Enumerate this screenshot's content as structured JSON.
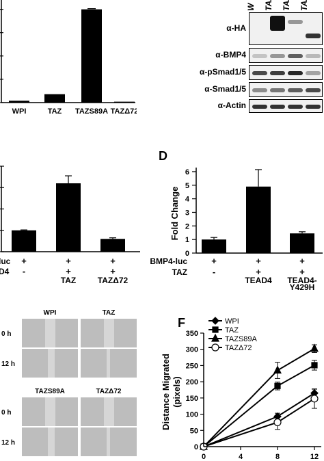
{
  "panel_letters": {
    "d": "D",
    "f": "F"
  },
  "chart_data": [
    {
      "id": "panel-a-bars",
      "type": "bar",
      "categories": [
        "WPI",
        "TAZ",
        "TAZS89A",
        "TAZΔ72"
      ],
      "values": [
        2,
        9,
        100,
        1
      ],
      "ylim": [
        0,
        110
      ],
      "xlabel": "",
      "ylabel": "",
      "title": ""
    },
    {
      "id": "panel-c-bars",
      "type": "bar",
      "values": [
        1.0,
        3.2,
        0.6
      ],
      "errors": [
        0.02,
        0.35,
        0.05
      ],
      "ylim": [
        0,
        4
      ],
      "row1_label": "luc",
      "row1": [
        "+",
        "+",
        "+"
      ],
      "row2_label": "D4",
      "row2": [
        "-",
        "+",
        "+"
      ],
      "row3": [
        "",
        "TAZ",
        "TAZΔ72"
      ]
    },
    {
      "id": "panel-d-bars",
      "type": "bar",
      "ylabel": "Fold Change",
      "values": [
        1.0,
        4.9,
        1.45
      ],
      "errors": [
        0.15,
        1.25,
        0.12
      ],
      "yticks": [
        "0",
        "1",
        "2",
        "3",
        "4",
        "5",
        "6"
      ],
      "ylim": [
        0,
        6.3
      ],
      "row1_label": "BMP4-luc",
      "row1": [
        "+",
        "+",
        "+"
      ],
      "row2_label": "TAZ",
      "row2": [
        "-",
        "+",
        "+"
      ],
      "row3": [
        "",
        "TEAD4",
        "TEAD4-"
      ],
      "row4": [
        "",
        "",
        "Y429H"
      ]
    },
    {
      "id": "panel-f-lines",
      "type": "line",
      "ylabel": "Distance Migrated",
      "ylabel2": "(pixels)",
      "x_ticks": [
        "0",
        "4",
        "8",
        "12"
      ],
      "x_range": [
        0,
        12
      ],
      "yticks": [
        "0",
        "50",
        "100",
        "150",
        "200",
        "250",
        "300",
        "350"
      ],
      "ylim": [
        0,
        350
      ],
      "series": [
        {
          "name": "WPI",
          "marker": "diamond",
          "x": [
            0,
            8,
            12
          ],
          "y": [
            0,
            93,
            165
          ],
          "err": [
            0,
            10,
            12
          ]
        },
        {
          "name": "TAZ",
          "marker": "square",
          "x": [
            0,
            8,
            12
          ],
          "y": [
            0,
            187,
            251
          ],
          "err": [
            0,
            12,
            15
          ]
        },
        {
          "name": "TAZS89A",
          "marker": "triangle",
          "x": [
            0,
            8,
            12
          ],
          "y": [
            0,
            235,
            302
          ],
          "err": [
            0,
            25,
            12
          ]
        },
        {
          "name": "TAZΔ72",
          "marker": "circle",
          "x": [
            0,
            8,
            12
          ],
          "y": [
            0,
            75,
            148
          ],
          "err": [
            0,
            22,
            30
          ]
        }
      ]
    }
  ],
  "blot": {
    "header_lanes": [
      "W",
      "TAZ",
      "TAZ",
      "TAZ"
    ],
    "rows": [
      {
        "label": "α-HA",
        "bands": [
          0,
          0.95,
          0.35,
          0.8
        ]
      },
      {
        "label": "α-BMP4",
        "bands": [
          0.15,
          0.35,
          0.6,
          0.2
        ]
      },
      {
        "label": "α-pSmad1/5",
        "bands": [
          0.7,
          0.75,
          0.85,
          0.3
        ]
      },
      {
        "label": "α-Smad1/5",
        "bands": [
          0.4,
          0.5,
          0.6,
          0.7
        ]
      },
      {
        "label": "α-Actin",
        "bands": [
          0.8,
          0.8,
          0.8,
          0.8
        ]
      }
    ]
  },
  "micro": {
    "top_columns": [
      "WPI",
      "TAZ"
    ],
    "bottom_columns": [
      "TAZS89A",
      "TAZΔ72"
    ],
    "rows": [
      "0 h",
      "12 h"
    ]
  }
}
